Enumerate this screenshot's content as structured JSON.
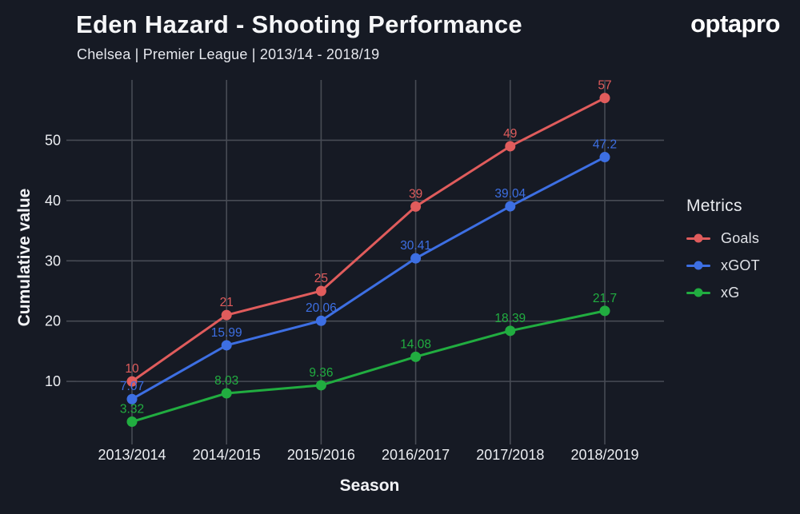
{
  "header": {
    "brand": "optapro"
  },
  "theme": {
    "background": "#161A24",
    "grid_color": "#474B54",
    "text_color": "#ECEEF2",
    "subtitle_color": "#E6E8EE"
  },
  "chart_data": {
    "type": "line",
    "title": "Eden Hazard - Shooting Performance",
    "subtitle": "Chelsea | Premier League | 2013/14 - 2018/19",
    "xlabel": "Season",
    "ylabel": "Cumulative value",
    "categories": [
      "2013/2014",
      "2014/2015",
      "2015/2016",
      "2016/2017",
      "2017/2018",
      "2018/2019"
    ],
    "series": [
      {
        "name": "Goals",
        "color": "#E05C5C",
        "values": [
          10,
          21,
          25,
          39,
          49,
          57
        ]
      },
      {
        "name": "xGOT",
        "color": "#3D6FE3",
        "values": [
          7.07,
          15.99,
          20.06,
          30.41,
          39.04,
          47.2
        ]
      },
      {
        "name": "xG",
        "color": "#21AD40",
        "values": [
          3.32,
          8.03,
          9.36,
          14.08,
          18.39,
          21.7
        ]
      }
    ],
    "yticks": [
      10,
      20,
      30,
      40,
      50
    ],
    "ylim": [
      1,
      60
    ],
    "grid": true,
    "point_labels": true,
    "legend": {
      "title": "Metrics",
      "position": "right"
    }
  }
}
